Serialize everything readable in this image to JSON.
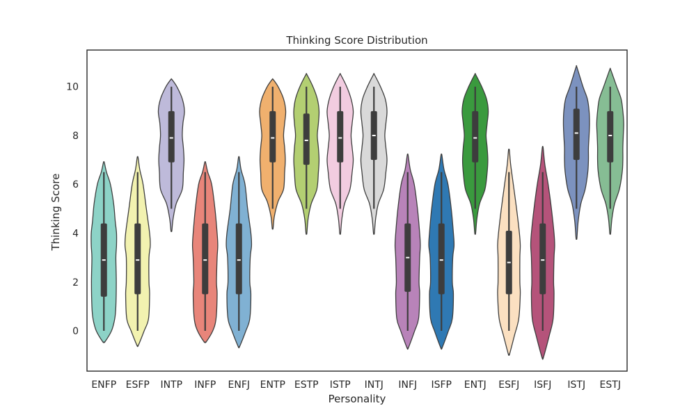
{
  "chart_data": {
    "type": "violin",
    "title": "Thinking Score Distribution",
    "xlabel": "Personality",
    "ylabel": "Thinking Score",
    "ylim": [
      -1.65,
      11.5
    ],
    "yticks": [
      0,
      2,
      4,
      6,
      8,
      10
    ],
    "grid": false,
    "legend": "none",
    "categories": [
      "ENFP",
      "ESFP",
      "INTP",
      "INFP",
      "ENFJ",
      "ENTP",
      "ESTP",
      "ISTP",
      "INTJ",
      "INFJ",
      "ISFP",
      "ENTJ",
      "ESFJ",
      "ISFJ",
      "ISTJ",
      "ESTJ"
    ],
    "series": [
      {
        "category": "ENFP",
        "color": "#8dd3c7",
        "kde_min": -0.45,
        "kde_max": 6.9,
        "whisker_low": 0,
        "whisker_high": 6.5,
        "q1": 1.4,
        "median": 2.9,
        "q3": 4.4,
        "shape": [
          [
            -0.45,
            0.05
          ],
          [
            0,
            0.35
          ],
          [
            0.5,
            0.5
          ],
          [
            1,
            0.55
          ],
          [
            2,
            0.57
          ],
          [
            3,
            0.55
          ],
          [
            3.5,
            0.58
          ],
          [
            4,
            0.58
          ],
          [
            4.5,
            0.52
          ],
          [
            5.2,
            0.45
          ],
          [
            6,
            0.3
          ],
          [
            6.5,
            0.12
          ],
          [
            6.9,
            0.02
          ]
        ]
      },
      {
        "category": "ESFP",
        "color": "#f2f2b0",
        "kde_min": -0.6,
        "kde_max": 7.1,
        "whisker_low": 0,
        "whisker_high": 6.5,
        "q1": 1.5,
        "median": 2.9,
        "q3": 4.4,
        "shape": [
          [
            -0.6,
            0.03
          ],
          [
            0,
            0.3
          ],
          [
            0.5,
            0.5
          ],
          [
            1.5,
            0.55
          ],
          [
            2,
            0.52
          ],
          [
            3,
            0.52
          ],
          [
            3.5,
            0.58
          ],
          [
            4,
            0.55
          ],
          [
            5,
            0.4
          ],
          [
            6,
            0.25
          ],
          [
            6.6,
            0.1
          ],
          [
            7.1,
            0.02
          ]
        ]
      },
      {
        "category": "INTP",
        "color": "#bebada",
        "kde_min": 4.1,
        "kde_max": 10.3,
        "whisker_low": 5,
        "whisker_high": 10,
        "q1": 6.9,
        "median": 7.9,
        "q3": 9,
        "shape": [
          [
            4.1,
            0.02
          ],
          [
            4.6,
            0.08
          ],
          [
            5.2,
            0.22
          ],
          [
            5.8,
            0.5
          ],
          [
            6.5,
            0.55
          ],
          [
            7,
            0.58
          ],
          [
            7.5,
            0.55
          ],
          [
            8,
            0.5
          ],
          [
            8.5,
            0.53
          ],
          [
            9,
            0.6
          ],
          [
            9.5,
            0.5
          ],
          [
            10,
            0.25
          ],
          [
            10.3,
            0.02
          ]
        ]
      },
      {
        "category": "INFP",
        "color": "#e8857a",
        "kde_min": -0.45,
        "kde_max": 6.9,
        "whisker_low": 0,
        "whisker_high": 6.5,
        "q1": 1.5,
        "median": 2.9,
        "q3": 4.4,
        "shape": [
          [
            -0.45,
            0.05
          ],
          [
            0,
            0.35
          ],
          [
            0.5,
            0.5
          ],
          [
            1.5,
            0.55
          ],
          [
            2,
            0.52
          ],
          [
            3,
            0.55
          ],
          [
            3.5,
            0.58
          ],
          [
            4,
            0.55
          ],
          [
            5,
            0.45
          ],
          [
            6,
            0.3
          ],
          [
            6.5,
            0.12
          ],
          [
            6.9,
            0.02
          ]
        ]
      },
      {
        "category": "ENFJ",
        "color": "#80b1d3",
        "kde_min": -0.65,
        "kde_max": 7.1,
        "whisker_low": 0,
        "whisker_high": 6.5,
        "q1": 1.5,
        "median": 2.9,
        "q3": 4.4,
        "shape": [
          [
            -0.65,
            0.03
          ],
          [
            0,
            0.32
          ],
          [
            0.5,
            0.5
          ],
          [
            1.5,
            0.55
          ],
          [
            2,
            0.5
          ],
          [
            3,
            0.52
          ],
          [
            3.5,
            0.58
          ],
          [
            4,
            0.55
          ],
          [
            5,
            0.4
          ],
          [
            6,
            0.28
          ],
          [
            6.6,
            0.1
          ],
          [
            7.1,
            0.02
          ]
        ]
      },
      {
        "category": "ENTP",
        "color": "#f0b06e",
        "kde_min": 4.2,
        "kde_max": 10.3,
        "whisker_low": 5,
        "whisker_high": 10,
        "q1": 6.9,
        "median": 7.9,
        "q3": 9,
        "shape": [
          [
            4.2,
            0.02
          ],
          [
            4.7,
            0.08
          ],
          [
            5.3,
            0.25
          ],
          [
            5.8,
            0.5
          ],
          [
            6.5,
            0.55
          ],
          [
            7,
            0.58
          ],
          [
            7.5,
            0.55
          ],
          [
            8,
            0.5
          ],
          [
            8.5,
            0.55
          ],
          [
            9,
            0.6
          ],
          [
            9.5,
            0.5
          ],
          [
            10,
            0.25
          ],
          [
            10.3,
            0.02
          ]
        ]
      },
      {
        "category": "ESTP",
        "color": "#b3cf72",
        "kde_min": 4,
        "kde_max": 10.5,
        "whisker_low": 5,
        "whisker_high": 10,
        "q1": 6.8,
        "median": 7.8,
        "q3": 8.9,
        "shape": [
          [
            4,
            0.02
          ],
          [
            4.6,
            0.08
          ],
          [
            5.2,
            0.22
          ],
          [
            5.8,
            0.48
          ],
          [
            6.5,
            0.55
          ],
          [
            7,
            0.58
          ],
          [
            7.5,
            0.55
          ],
          [
            8,
            0.5
          ],
          [
            8.5,
            0.55
          ],
          [
            9,
            0.58
          ],
          [
            9.5,
            0.5
          ],
          [
            10,
            0.3
          ],
          [
            10.5,
            0.02
          ]
        ]
      },
      {
        "category": "ISTP",
        "color": "#f2cce0",
        "kde_min": 4,
        "kde_max": 10.5,
        "whisker_low": 5,
        "whisker_high": 10,
        "q1": 6.9,
        "median": 7.9,
        "q3": 9,
        "shape": [
          [
            4,
            0.02
          ],
          [
            4.6,
            0.08
          ],
          [
            5.2,
            0.2
          ],
          [
            5.8,
            0.45
          ],
          [
            6.5,
            0.55
          ],
          [
            7,
            0.6
          ],
          [
            7.5,
            0.55
          ],
          [
            8,
            0.5
          ],
          [
            8.5,
            0.55
          ],
          [
            9,
            0.6
          ],
          [
            9.5,
            0.5
          ],
          [
            10,
            0.3
          ],
          [
            10.5,
            0.02
          ]
        ]
      },
      {
        "category": "INTJ",
        "color": "#d9d9d9",
        "kde_min": 4,
        "kde_max": 10.5,
        "whisker_low": 5,
        "whisker_high": 10,
        "q1": 7,
        "median": 8,
        "q3": 9,
        "shape": [
          [
            4,
            0.02
          ],
          [
            4.6,
            0.08
          ],
          [
            5.2,
            0.2
          ],
          [
            5.8,
            0.45
          ],
          [
            6.5,
            0.55
          ],
          [
            7,
            0.6
          ],
          [
            7.5,
            0.55
          ],
          [
            8,
            0.5
          ],
          [
            8.5,
            0.55
          ],
          [
            9,
            0.6
          ],
          [
            9.5,
            0.52
          ],
          [
            10,
            0.3
          ],
          [
            10.5,
            0.02
          ]
        ]
      },
      {
        "category": "INFJ",
        "color": "#b883b9",
        "kde_min": -0.7,
        "kde_max": 7.2,
        "whisker_low": 0,
        "whisker_high": 6.5,
        "q1": 1.6,
        "median": 3,
        "q3": 4.4,
        "shape": [
          [
            -0.7,
            0.03
          ],
          [
            0,
            0.32
          ],
          [
            0.5,
            0.5
          ],
          [
            1.5,
            0.55
          ],
          [
            2,
            0.52
          ],
          [
            3,
            0.55
          ],
          [
            3.5,
            0.58
          ],
          [
            4,
            0.55
          ],
          [
            5,
            0.45
          ],
          [
            6,
            0.3
          ],
          [
            6.6,
            0.12
          ],
          [
            7.2,
            0.02
          ]
        ]
      },
      {
        "category": "ISFP",
        "color": "#2f79b3",
        "kde_min": -0.7,
        "kde_max": 7.2,
        "whisker_low": 0,
        "whisker_high": 6.5,
        "q1": 1.5,
        "median": 2.9,
        "q3": 4.4,
        "shape": [
          [
            -0.7,
            0.03
          ],
          [
            0,
            0.32
          ],
          [
            0.5,
            0.5
          ],
          [
            1.5,
            0.55
          ],
          [
            2,
            0.5
          ],
          [
            3,
            0.52
          ],
          [
            3.5,
            0.58
          ],
          [
            4,
            0.55
          ],
          [
            5,
            0.45
          ],
          [
            6,
            0.3
          ],
          [
            6.6,
            0.12
          ],
          [
            7.2,
            0.02
          ]
        ]
      },
      {
        "category": "ENTJ",
        "color": "#3a9a3e",
        "kde_min": 4,
        "kde_max": 10.5,
        "whisker_low": 5,
        "whisker_high": 10,
        "q1": 6.9,
        "median": 7.9,
        "q3": 9,
        "shape": [
          [
            4,
            0.02
          ],
          [
            4.6,
            0.08
          ],
          [
            5.2,
            0.2
          ],
          [
            5.8,
            0.45
          ],
          [
            6.5,
            0.55
          ],
          [
            7,
            0.58
          ],
          [
            7.5,
            0.55
          ],
          [
            8,
            0.5
          ],
          [
            8.5,
            0.55
          ],
          [
            9,
            0.6
          ],
          [
            9.5,
            0.52
          ],
          [
            10,
            0.3
          ],
          [
            10.5,
            0.02
          ]
        ]
      },
      {
        "category": "ESFJ",
        "color": "#fbe0c1",
        "kde_min": -0.95,
        "kde_max": 7.4,
        "whisker_low": 0,
        "whisker_high": 6.5,
        "q1": 1.5,
        "median": 2.8,
        "q3": 4.1,
        "shape": [
          [
            -0.95,
            0.03
          ],
          [
            -0.2,
            0.25
          ],
          [
            0.5,
            0.45
          ],
          [
            1.5,
            0.52
          ],
          [
            2,
            0.5
          ],
          [
            3,
            0.5
          ],
          [
            3.5,
            0.52
          ],
          [
            4,
            0.48
          ],
          [
            5,
            0.35
          ],
          [
            6,
            0.2
          ],
          [
            6.8,
            0.08
          ],
          [
            7.4,
            0.02
          ]
        ]
      },
      {
        "category": "ISFJ",
        "color": "#b5537a",
        "kde_min": -1.1,
        "kde_max": 7.5,
        "whisker_low": 0,
        "whisker_high": 6.5,
        "q1": 1.5,
        "median": 2.9,
        "q3": 4.4,
        "shape": [
          [
            -1.1,
            0.03
          ],
          [
            -0.2,
            0.3
          ],
          [
            0.5,
            0.48
          ],
          [
            1.5,
            0.52
          ],
          [
            2,
            0.5
          ],
          [
            3,
            0.52
          ],
          [
            3.5,
            0.55
          ],
          [
            4,
            0.52
          ],
          [
            5,
            0.4
          ],
          [
            6,
            0.25
          ],
          [
            6.8,
            0.1
          ],
          [
            7.5,
            0.02
          ]
        ]
      },
      {
        "category": "ISTJ",
        "color": "#7c92bf",
        "kde_min": 3.8,
        "kde_max": 10.8,
        "whisker_low": 5,
        "whisker_high": 10,
        "q1": 7,
        "median": 8.1,
        "q3": 9.1,
        "shape": [
          [
            3.8,
            0.02
          ],
          [
            4.5,
            0.08
          ],
          [
            5.2,
            0.2
          ],
          [
            5.8,
            0.4
          ],
          [
            6.5,
            0.52
          ],
          [
            7,
            0.55
          ],
          [
            7.5,
            0.55
          ],
          [
            8,
            0.58
          ],
          [
            8.5,
            0.6
          ],
          [
            9,
            0.58
          ],
          [
            9.5,
            0.5
          ],
          [
            10,
            0.3
          ],
          [
            10.8,
            0.02
          ]
        ]
      },
      {
        "category": "ESTJ",
        "color": "#86bd94",
        "kde_min": 4,
        "kde_max": 10.7,
        "whisker_low": 5,
        "whisker_high": 10,
        "q1": 6.9,
        "median": 8,
        "q3": 9,
        "shape": [
          [
            4,
            0.02
          ],
          [
            4.6,
            0.08
          ],
          [
            5.2,
            0.2
          ],
          [
            5.8,
            0.42
          ],
          [
            6.5,
            0.55
          ],
          [
            7,
            0.58
          ],
          [
            7.5,
            0.58
          ],
          [
            8,
            0.6
          ],
          [
            8.5,
            0.62
          ],
          [
            9,
            0.58
          ],
          [
            9.5,
            0.5
          ],
          [
            10,
            0.3
          ],
          [
            10.7,
            0.02
          ]
        ]
      }
    ]
  }
}
